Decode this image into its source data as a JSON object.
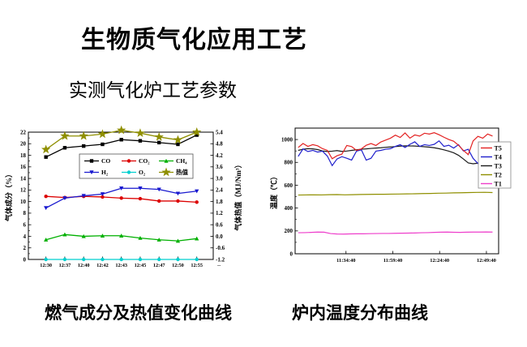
{
  "title": "生物质气化应用工艺",
  "subtitle": "实测气化炉工艺参数",
  "captions": {
    "gas": "燃气成分及热值变化曲线",
    "temperature": "炉内温度分布曲线"
  },
  "chart_data": [
    {
      "id": "gas",
      "type": "line",
      "title": "燃气成分及热值变化曲线",
      "ylabel_left": "气体成分（%）",
      "ylabel_right": "气体热值（MJ/Nm³）",
      "x_categories": [
        "12:30",
        "12:37",
        "12:40",
        "12:42",
        "12:43",
        "12:45",
        "12:47",
        "12:50",
        "12:55"
      ],
      "x_end_label": "--",
      "y_left": {
        "min": 0,
        "max": 22,
        "step": 2
      },
      "y_right": {
        "min": -1.2,
        "max": 5.4,
        "step": 0.6
      },
      "legend_position": "inside-top-center",
      "legend_columns": 3,
      "series": [
        {
          "name": "CO",
          "axis": "left",
          "color": "#000000",
          "marker": "square",
          "values": [
            17.7,
            19.3,
            19.6,
            19.9,
            20.7,
            20.5,
            20.2,
            19.9,
            21.5
          ]
        },
        {
          "name": "CO₂",
          "axis": "left",
          "color": "#dc0000",
          "marker": "circle",
          "values": [
            10.9,
            10.7,
            10.9,
            10.8,
            10.6,
            10.5,
            10.1,
            10.1,
            9.9
          ]
        },
        {
          "name": "CH₄",
          "axis": "left",
          "color": "#00b000",
          "marker": "triangle-up",
          "values": [
            3.4,
            4.3,
            4.0,
            4.1,
            4.1,
            3.7,
            3.4,
            3.2,
            3.6
          ]
        },
        {
          "name": "H₂",
          "axis": "left",
          "color": "#1818cf",
          "marker": "triangle-down",
          "values": [
            8.9,
            10.6,
            11.0,
            11.3,
            12.3,
            12.3,
            12.1,
            11.4,
            11.8
          ]
        },
        {
          "name": "O₂",
          "axis": "left",
          "color": "#00cfcf",
          "marker": "circle",
          "values": [
            0,
            0,
            0,
            0,
            0,
            0,
            0,
            0,
            0
          ]
        },
        {
          "name": "热值",
          "axis": "right",
          "color": "#8f8f00",
          "marker": "star",
          "values": [
            4.5,
            5.2,
            5.2,
            5.3,
            5.5,
            5.35,
            5.15,
            5.0,
            5.4
          ]
        }
      ]
    },
    {
      "id": "temp",
      "type": "line",
      "title": "炉内温度分布曲线",
      "ylabel_left": "温度（℃）",
      "y_left": {
        "min": 0,
        "max": 1100,
        "step": 200,
        "label_max": 1000
      },
      "x_ticks": [
        {
          "pos": 0.25,
          "label": "11:34:40"
        },
        {
          "pos": 0.48,
          "label": "11:59:40"
        },
        {
          "pos": 0.71,
          "label": "12:24:40"
        },
        {
          "pos": 0.94,
          "label": "12:49:40"
        }
      ],
      "legend_position": "inside-right",
      "series": [
        {
          "name": "T5",
          "color": "#e32222",
          "values": [
            930,
            965,
            940,
            955,
            945,
            920,
            905,
            832,
            858,
            872,
            948,
            938,
            905,
            918,
            950,
            965,
            948,
            978,
            995,
            1012,
            1038,
            1018,
            1058,
            1012,
            1040,
            1030,
            1055,
            1048,
            1060,
            1042,
            1020,
            1000,
            985,
            950,
            905,
            868,
            988,
            1028,
            1012,
            1048,
            1030
          ]
        },
        {
          "name": "T4",
          "color": "#2020cc",
          "values": [
            852,
            918,
            895,
            905,
            890,
            898,
            855,
            772,
            830,
            850,
            836,
            820,
            898,
            910,
            820,
            836,
            898,
            905,
            915,
            920,
            940,
            955,
            930,
            958,
            980,
            940,
            955,
            948,
            958,
            988,
            940,
            950,
            925,
            955,
            900,
            915,
            835,
            790,
            806,
            845,
            880
          ]
        },
        {
          "name": "T3",
          "color": "#1a1a1a",
          "values": [
            905,
            915,
            920,
            918,
            912,
            900,
            895,
            898,
            903,
            896,
            899,
            905,
            910,
            915,
            918,
            922,
            925,
            928,
            932,
            935,
            938,
            942,
            945,
            944,
            943,
            940,
            937,
            933,
            928,
            920,
            910,
            898,
            884,
            862,
            830,
            795,
            788,
            793,
            798,
            794,
            800
          ]
        },
        {
          "name": "T2",
          "color": "#8f8f00",
          "values": [
            514,
            515,
            516,
            515,
            517,
            518,
            516,
            517,
            519,
            520,
            521,
            521,
            522,
            523,
            524,
            525,
            527,
            528,
            530,
            531,
            533,
            534,
            536,
            537,
            538,
            536
          ]
        },
        {
          "name": "T1",
          "color": "#ee3ecb",
          "values": [
            184,
            185,
            187,
            190,
            189,
            177,
            173,
            172,
            174,
            175,
            175,
            176,
            177,
            178,
            178,
            179,
            180,
            181,
            182,
            184,
            185,
            187,
            189,
            190,
            188,
            187,
            189,
            190,
            190,
            191,
            190
          ]
        }
      ]
    }
  ]
}
